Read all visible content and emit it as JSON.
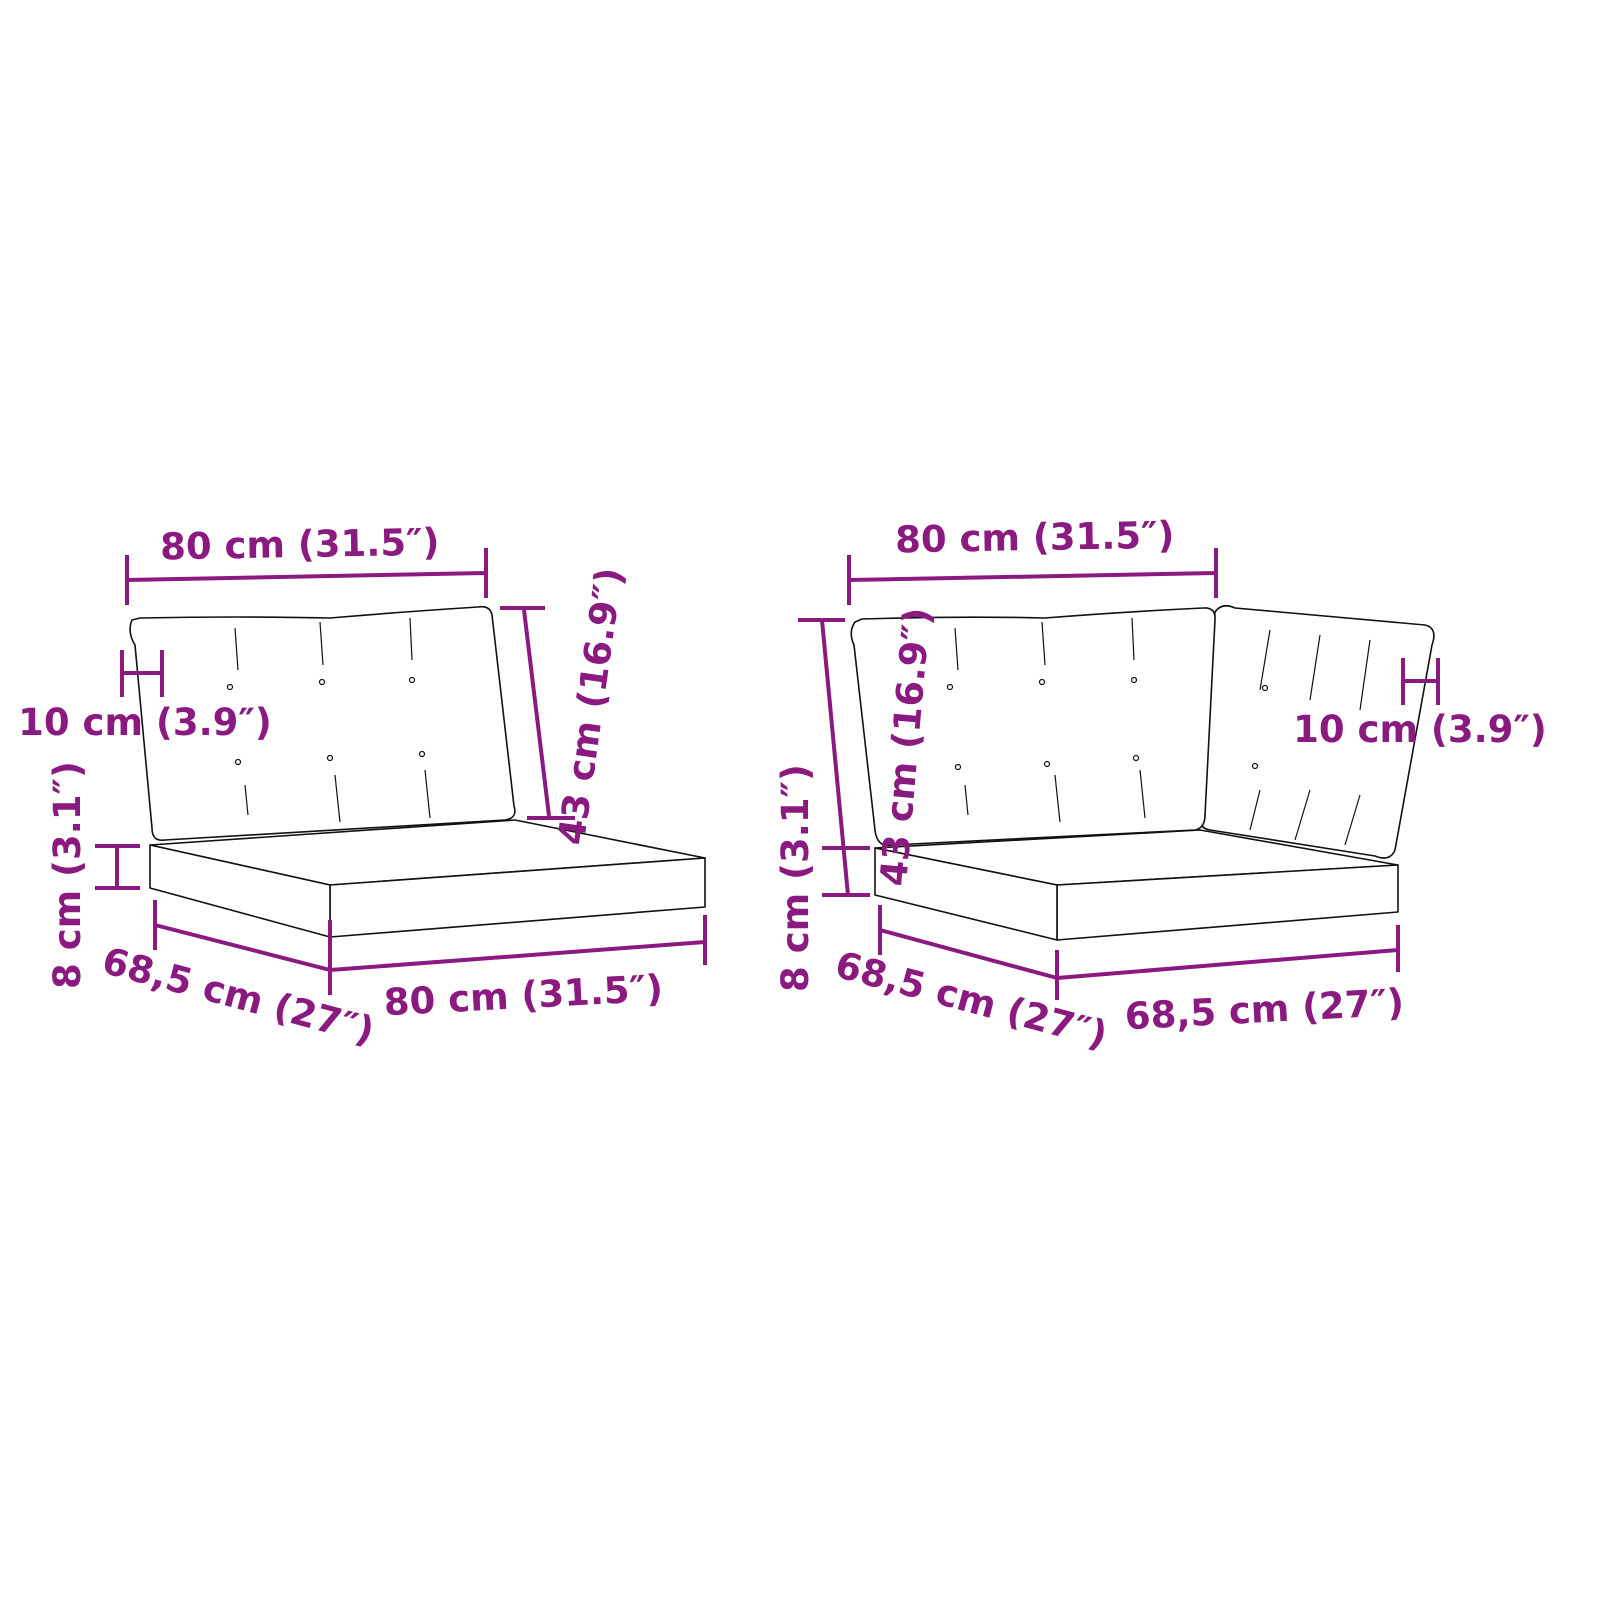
{
  "accent_color": "#8b1a80",
  "left_unit": {
    "back_width": "80 cm (31.5″)",
    "back_thickness": "10 cm (3.9″)",
    "back_height": "43 cm (16.9″)",
    "seat_thickness": "8 cm (3.1″)",
    "seat_depth": "68,5 cm (27″)",
    "seat_width": "80 cm (31.5″)"
  },
  "right_unit": {
    "back_width": "80 cm (31.5″)",
    "back_thickness": "10 cm (3.9″)",
    "back_height": "43 cm (16.9″)",
    "seat_thickness": "8 cm (3.1″)",
    "seat_depth": "68,5 cm (27″)",
    "seat_width": "68,5 cm (27″)"
  }
}
